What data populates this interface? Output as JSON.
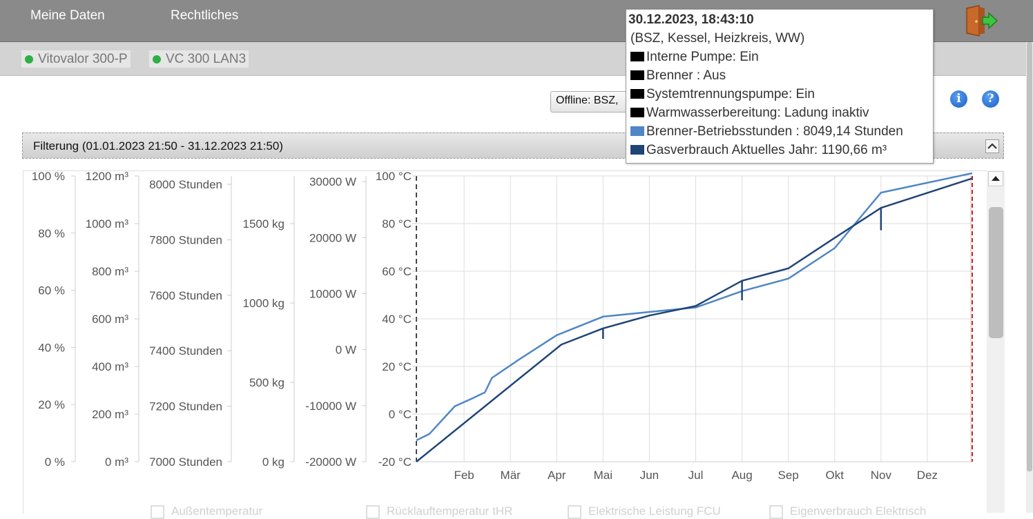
{
  "topbar": {
    "nav": [
      "Meine Daten",
      "Rechtliches"
    ],
    "exit_icon": "door-exit-arrow-icon"
  },
  "devices": [
    {
      "name": "Vitovalor 300-P",
      "status_color": "#2db043"
    },
    {
      "name": "VC 300 LAN3",
      "status_color": "#2db043"
    }
  ],
  "toolbar": {
    "offline_label": "Offline: BSZ,",
    "info_icon": "info-icon",
    "help_icon": "help-icon",
    "info_glyph": "i",
    "help_glyph": "?"
  },
  "filter": {
    "label": "Filterung (01.01.2023 21:50 - 31.12.2023 21:50)",
    "collapse_icon": "chevron-up-icon"
  },
  "tooltip": {
    "time": "30.12.2023, 18:43:10",
    "source": "(BSZ, Kessel, Heizkreis, WW)",
    "rows": [
      {
        "text": "Interne Pumpe: Ein",
        "color": "#000000"
      },
      {
        "text": "Brenner : Aus",
        "color": "#000000"
      },
      {
        "text": "Systemtrennungspumpe: Ein",
        "color": "#000000"
      },
      {
        "text": "Warmwasserbereitung: Ladung inaktiv",
        "color": "#000000"
      },
      {
        "text": "Brenner-Betriebsstunden : 8049,14 Stunden",
        "color": "#4f86c6"
      },
      {
        "text": "Gasverbrauch Aktuelles Jahr: 1190,66 m³",
        "color": "#1f4577"
      }
    ]
  },
  "legend": [
    "Außentemperatur",
    "Rücklauftemperatur tHR",
    "Elektrische Leistung FCU",
    "Eigenverbrauch Elektrisch"
  ],
  "chart_data": {
    "type": "line",
    "x_axis": {
      "ticks": [
        "Feb",
        "Mär",
        "Apr",
        "Mai",
        "Jun",
        "Jul",
        "Aug",
        "Sep",
        "Okt",
        "Nov",
        "Dez"
      ]
    },
    "y_axes": [
      {
        "ticks": [
          "0 %",
          "20 %",
          "40 %",
          "60 %",
          "80 %",
          "100 %"
        ],
        "range": [
          0,
          100
        ]
      },
      {
        "ticks": [
          "0 m³",
          "200 m³",
          "400 m³",
          "600 m³",
          "800 m³",
          "1000 m³",
          "1200 m³"
        ],
        "range": [
          0,
          1200
        ]
      },
      {
        "ticks": [
          "7000 Stunden",
          "7200 Stunden",
          "7400 Stunden",
          "7600 Stunden",
          "7800 Stunden",
          "8000 Stunden"
        ],
        "range": [
          7000,
          8030
        ]
      },
      {
        "ticks": [
          "0 kg",
          "500 kg",
          "1000 kg",
          "1500 kg"
        ],
        "range": [
          0,
          1800
        ]
      },
      {
        "ticks": [
          "-20000 W",
          "-10000 W",
          "0 W",
          "10000 W",
          "20000 W",
          "30000 W"
        ],
        "range": [
          -20000,
          31000
        ]
      },
      {
        "ticks": [
          "-20 °C",
          "0 °C",
          "20 °C",
          "40 °C",
          "60 °C",
          "80 °C",
          "100 °C"
        ],
        "range": [
          -20,
          100
        ]
      }
    ],
    "x_range_months": [
      0.97,
      12.97
    ],
    "series": [
      {
        "name": "Brenner-Betriebsstunden",
        "axis": 2,
        "color": "#4f86c6",
        "points": [
          [
            0.97,
            7077
          ],
          [
            1.25,
            7100
          ],
          [
            1.8,
            7200
          ],
          [
            2.2,
            7230
          ],
          [
            2.45,
            7250
          ],
          [
            2.6,
            7302
          ],
          [
            3.2,
            7370
          ],
          [
            4.0,
            7456
          ],
          [
            5.0,
            7523
          ],
          [
            6.0,
            7540
          ],
          [
            7.0,
            7556
          ],
          [
            8.0,
            7615
          ],
          [
            9.0,
            7660
          ],
          [
            10.0,
            7770
          ],
          [
            11.0,
            7970
          ],
          [
            12.97,
            8040
          ]
        ]
      },
      {
        "name": "Gasverbrauch Aktuelles Jahr",
        "axis": 1,
        "color": "#1f4577",
        "points": [
          [
            0.97,
            0
          ],
          [
            4.1,
            492
          ],
          [
            5.0,
            560
          ],
          [
            6.0,
            614
          ],
          [
            7.0,
            654
          ],
          [
            8.0,
            760
          ],
          [
            9.0,
            812
          ],
          [
            10.0,
            940
          ],
          [
            11.0,
            1066
          ],
          [
            12.97,
            1190
          ]
        ],
        "dips": [
          [
            5.0,
            560,
            516
          ],
          [
            8.0,
            760,
            678
          ],
          [
            11.0,
            1066,
            972
          ]
        ]
      }
    ],
    "grid": true
  }
}
